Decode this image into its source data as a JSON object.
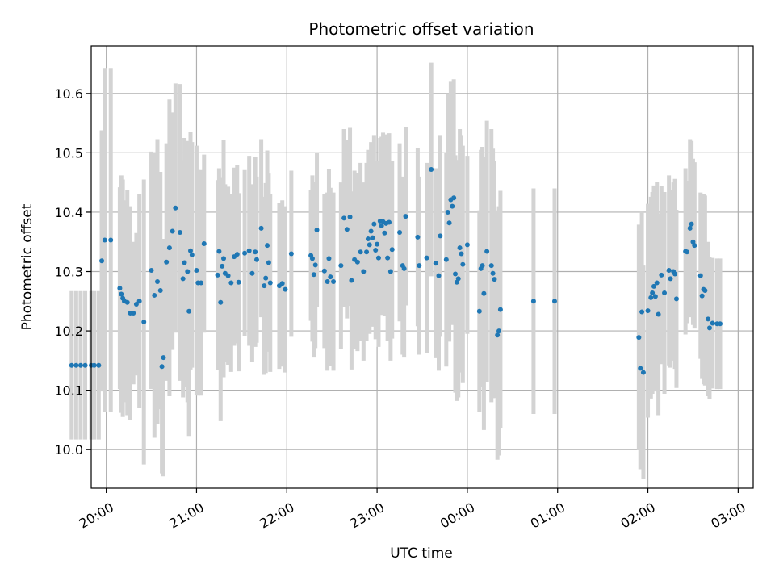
{
  "chart_data": {
    "type": "scatter",
    "title": "Photometric offset variation",
    "xlabel": "UTC time",
    "ylabel": "Photometric offset",
    "grid": true,
    "xlim": [
      "19:50",
      "27:10"
    ],
    "ylim": [
      9.935,
      10.68
    ],
    "x_unit": "UTC time of night (hours past midnight of the evening date; values above 24:00 fall after midnight)",
    "x_ticks": [
      "20:00",
      "21:00",
      "22:00",
      "23:00",
      "00:00",
      "01:00",
      "02:00",
      "03:00"
    ],
    "x_tick_positions": [
      "20:00",
      "21:00",
      "22:00",
      "23:00",
      "24:00",
      "25:00",
      "26:00",
      "27:00"
    ],
    "y_ticks": [
      10.0,
      10.1,
      10.2,
      10.3,
      10.4,
      10.5,
      10.6
    ],
    "point_color": "#1f77b4",
    "errorbar_color": "#d3d3d3",
    "points": [
      {
        "t": "19:37",
        "y": 10.142,
        "err": 0.125
      },
      {
        "t": "19:40",
        "y": 10.142,
        "err": 0.125
      },
      {
        "t": "19:43",
        "y": 10.142,
        "err": 0.125
      },
      {
        "t": "19:46",
        "y": 10.142,
        "err": 0.125
      },
      {
        "t": "19:50",
        "y": 10.142,
        "err": 0.125
      },
      {
        "t": "19:52",
        "y": 10.142,
        "err": 0.125
      },
      {
        "t": "19:55",
        "y": 10.142,
        "err": 0.125
      },
      {
        "t": "19:57",
        "y": 10.318,
        "err": 0.22
      },
      {
        "t": "19:59",
        "y": 10.353,
        "err": 0.29
      },
      {
        "t": "20:03",
        "y": 10.353,
        "err": 0.29
      },
      {
        "t": "20:09",
        "y": 10.272,
        "err": 0.17
      },
      {
        "t": "20:10",
        "y": 10.262,
        "err": 0.2
      },
      {
        "t": "20:11",
        "y": 10.255,
        "err": 0.2
      },
      {
        "t": "20:12",
        "y": 10.25,
        "err": 0.17
      },
      {
        "t": "20:14",
        "y": 10.248,
        "err": 0.19
      },
      {
        "t": "20:16",
        "y": 10.23,
        "err": 0.18
      },
      {
        "t": "20:18",
        "y": 10.23,
        "err": 0.12
      },
      {
        "t": "20:20",
        "y": 10.245,
        "err": 0.12
      },
      {
        "t": "20:22",
        "y": 10.25,
        "err": 0.18
      },
      {
        "t": "20:25",
        "y": 10.215,
        "err": 0.24
      },
      {
        "t": "20:30",
        "y": 10.302,
        "err": 0.2
      },
      {
        "t": "20:32",
        "y": 10.26,
        "err": 0.24
      },
      {
        "t": "20:34",
        "y": 10.283,
        "err": 0.24
      },
      {
        "t": "20:36",
        "y": 10.268,
        "err": 0.2
      },
      {
        "t": "20:37",
        "y": 10.14,
        "err": 0.18
      },
      {
        "t": "20:38",
        "y": 10.155,
        "err": 0.2
      },
      {
        "t": "20:40",
        "y": 10.316,
        "err": 0.2
      },
      {
        "t": "20:42",
        "y": 10.34,
        "err": 0.25
      },
      {
        "t": "20:44",
        "y": 10.368,
        "err": 0.2
      },
      {
        "t": "20:46",
        "y": 10.407,
        "err": 0.21
      },
      {
        "t": "20:49",
        "y": 10.366,
        "err": 0.25
      },
      {
        "t": "20:51",
        "y": 10.288,
        "err": 0.2
      },
      {
        "t": "20:52",
        "y": 10.315,
        "err": 0.21
      },
      {
        "t": "20:54",
        "y": 10.3,
        "err": 0.22
      },
      {
        "t": "20:55",
        "y": 10.233,
        "err": 0.21
      },
      {
        "t": "20:56",
        "y": 10.335,
        "err": 0.2
      },
      {
        "t": "20:57",
        "y": 10.328,
        "err": 0.19
      },
      {
        "t": "21:00",
        "y": 10.302,
        "err": 0.21
      },
      {
        "t": "21:01",
        "y": 10.281,
        "err": 0.19
      },
      {
        "t": "21:03",
        "y": 10.281,
        "err": 0.19
      },
      {
        "t": "21:05",
        "y": 10.347,
        "err": 0.15
      },
      {
        "t": "21:14",
        "y": 10.294,
        "err": 0.16
      },
      {
        "t": "21:15",
        "y": 10.334,
        "err": 0.14
      },
      {
        "t": "21:16",
        "y": 10.248,
        "err": 0.2
      },
      {
        "t": "21:17",
        "y": 10.309,
        "err": 0.15
      },
      {
        "t": "21:18",
        "y": 10.322,
        "err": 0.2
      },
      {
        "t": "21:19",
        "y": 10.297,
        "err": 0.15
      },
      {
        "t": "21:21",
        "y": 10.293,
        "err": 0.15
      },
      {
        "t": "21:23",
        "y": 10.281,
        "err": 0.15
      },
      {
        "t": "21:25",
        "y": 10.325,
        "err": 0.15
      },
      {
        "t": "21:27",
        "y": 10.329,
        "err": 0.15
      },
      {
        "t": "21:28",
        "y": 10.282,
        "err": 0.15
      },
      {
        "t": "21:32",
        "y": 10.331,
        "err": 0.14
      },
      {
        "t": "21:35",
        "y": 10.335,
        "err": 0.16
      },
      {
        "t": "21:37",
        "y": 10.297,
        "err": 0.15
      },
      {
        "t": "21:39",
        "y": 10.333,
        "err": 0.16
      },
      {
        "t": "21:40",
        "y": 10.32,
        "err": 0.14
      },
      {
        "t": "21:43",
        "y": 10.373,
        "err": 0.15
      },
      {
        "t": "21:45",
        "y": 10.276,
        "err": 0.15
      },
      {
        "t": "21:46",
        "y": 10.289,
        "err": 0.16
      },
      {
        "t": "21:47",
        "y": 10.344,
        "err": 0.16
      },
      {
        "t": "21:48",
        "y": 10.315,
        "err": 0.15
      },
      {
        "t": "21:49",
        "y": 10.281,
        "err": 0.15
      },
      {
        "t": "21:55",
        "y": 10.276,
        "err": 0.14
      },
      {
        "t": "21:57",
        "y": 10.28,
        "err": 0.14
      },
      {
        "t": "21:59",
        "y": 10.27,
        "err": 0.14
      },
      {
        "t": "22:03",
        "y": 10.33,
        "err": 0.14
      },
      {
        "t": "22:16",
        "y": 10.327,
        "err": 0.11
      },
      {
        "t": "22:17",
        "y": 10.322,
        "err": 0.14
      },
      {
        "t": "22:18",
        "y": 10.295,
        "err": 0.14
      },
      {
        "t": "22:19",
        "y": 10.311,
        "err": 0.14
      },
      {
        "t": "22:20",
        "y": 10.37,
        "err": 0.13
      },
      {
        "t": "22:25",
        "y": 10.301,
        "err": 0.13
      },
      {
        "t": "22:27",
        "y": 10.283,
        "err": 0.15
      },
      {
        "t": "22:28",
        "y": 10.322,
        "err": 0.15
      },
      {
        "t": "22:29",
        "y": 10.291,
        "err": 0.15
      },
      {
        "t": "22:31",
        "y": 10.283,
        "err": 0.15
      },
      {
        "t": "22:36",
        "y": 10.31,
        "err": 0.14
      },
      {
        "t": "22:38",
        "y": 10.39,
        "err": 0.15
      },
      {
        "t": "22:40",
        "y": 10.371,
        "err": 0.15
      },
      {
        "t": "22:42",
        "y": 10.392,
        "err": 0.15
      },
      {
        "t": "22:43",
        "y": 10.285,
        "err": 0.15
      },
      {
        "t": "22:45",
        "y": 10.32,
        "err": 0.15
      },
      {
        "t": "22:47",
        "y": 10.316,
        "err": 0.15
      },
      {
        "t": "22:49",
        "y": 10.333,
        "err": 0.15
      },
      {
        "t": "22:51",
        "y": 10.3,
        "err": 0.15
      },
      {
        "t": "22:53",
        "y": 10.333,
        "err": 0.15
      },
      {
        "t": "22:54",
        "y": 10.355,
        "err": 0.15
      },
      {
        "t": "22:55",
        "y": 10.345,
        "err": 0.15
      },
      {
        "t": "22:56",
        "y": 10.368,
        "err": 0.15
      },
      {
        "t": "22:57",
        "y": 10.357,
        "err": 0.15
      },
      {
        "t": "22:58",
        "y": 10.38,
        "err": 0.15
      },
      {
        "t": "22:59",
        "y": 10.336,
        "err": 0.15
      },
      {
        "t": "23:00",
        "y": 10.346,
        "err": 0.14
      },
      {
        "t": "23:01",
        "y": 10.323,
        "err": 0.15
      },
      {
        "t": "23:02",
        "y": 10.385,
        "err": 0.14
      },
      {
        "t": "23:03",
        "y": 10.377,
        "err": 0.15
      },
      {
        "t": "23:04",
        "y": 10.384,
        "err": 0.15
      },
      {
        "t": "23:05",
        "y": 10.365,
        "err": 0.14
      },
      {
        "t": "23:06",
        "y": 10.381,
        "err": 0.15
      },
      {
        "t": "23:07",
        "y": 10.323,
        "err": 0.14
      },
      {
        "t": "23:08",
        "y": 10.383,
        "err": 0.15
      },
      {
        "t": "23:09",
        "y": 10.3,
        "err": 0.15
      },
      {
        "t": "23:10",
        "y": 10.337,
        "err": 0.15
      },
      {
        "t": "23:15",
        "y": 10.366,
        "err": 0.15
      },
      {
        "t": "23:17",
        "y": 10.31,
        "err": 0.15
      },
      {
        "t": "23:18",
        "y": 10.305,
        "err": 0.15
      },
      {
        "t": "23:19",
        "y": 10.393,
        "err": 0.15
      },
      {
        "t": "23:27",
        "y": 10.358,
        "err": 0.15
      },
      {
        "t": "23:28",
        "y": 10.31,
        "err": 0.15
      },
      {
        "t": "23:33",
        "y": 10.323,
        "err": 0.16
      },
      {
        "t": "23:36",
        "y": 10.472,
        "err": 0.18
      },
      {
        "t": "23:39",
        "y": 10.314,
        "err": 0.16
      },
      {
        "t": "23:41",
        "y": 10.293,
        "err": 0.16
      },
      {
        "t": "23:42",
        "y": 10.36,
        "err": 0.17
      },
      {
        "t": "23:46",
        "y": 10.32,
        "err": 0.18
      },
      {
        "t": "23:47",
        "y": 10.4,
        "err": 0.2
      },
      {
        "t": "23:48",
        "y": 10.382,
        "err": 0.2
      },
      {
        "t": "23:49",
        "y": 10.421,
        "err": 0.2
      },
      {
        "t": "23:50",
        "y": 10.41,
        "err": 0.2
      },
      {
        "t": "23:51",
        "y": 10.424,
        "err": 0.2
      },
      {
        "t": "23:52",
        "y": 10.296,
        "err": 0.2
      },
      {
        "t": "23:53",
        "y": 10.282,
        "err": 0.2
      },
      {
        "t": "23:54",
        "y": 10.288,
        "err": 0.2
      },
      {
        "t": "23:55",
        "y": 10.34,
        "err": 0.2
      },
      {
        "t": "23:56",
        "y": 10.33,
        "err": 0.2
      },
      {
        "t": "23:57",
        "y": 10.312,
        "err": 0.2
      },
      {
        "t": "24:00",
        "y": 10.345,
        "err": 0.15
      },
      {
        "t": "24:08",
        "y": 10.233,
        "err": 0.17
      },
      {
        "t": "24:09",
        "y": 10.305,
        "err": 0.2
      },
      {
        "t": "24:10",
        "y": 10.31,
        "err": 0.2
      },
      {
        "t": "24:11",
        "y": 10.263,
        "err": 0.23
      },
      {
        "t": "24:13",
        "y": 10.334,
        "err": 0.22
      },
      {
        "t": "24:16",
        "y": 10.31,
        "err": 0.23
      },
      {
        "t": "24:17",
        "y": 10.297,
        "err": 0.21
      },
      {
        "t": "24:18",
        "y": 10.287,
        "err": 0.2
      },
      {
        "t": "24:20",
        "y": 10.193,
        "err": 0.21
      },
      {
        "t": "24:21",
        "y": 10.2,
        "err": 0.21
      },
      {
        "t": "24:22",
        "y": 10.236,
        "err": 0.2
      },
      {
        "t": "24:44",
        "y": 10.25,
        "err": 0.19
      },
      {
        "t": "24:58",
        "y": 10.25,
        "err": 0.19
      },
      {
        "t": "25:54",
        "y": 10.189,
        "err": 0.19
      },
      {
        "t": "25:55",
        "y": 10.137,
        "err": 0.17
      },
      {
        "t": "25:56",
        "y": 10.232,
        "err": 0.17
      },
      {
        "t": "25:57",
        "y": 10.13,
        "err": 0.18
      },
      {
        "t": "26:00",
        "y": 10.234,
        "err": 0.18
      },
      {
        "t": "26:02",
        "y": 10.256,
        "err": 0.17
      },
      {
        "t": "26:03",
        "y": 10.264,
        "err": 0.17
      },
      {
        "t": "26:04",
        "y": 10.275,
        "err": 0.17
      },
      {
        "t": "26:05",
        "y": 10.258,
        "err": 0.16
      },
      {
        "t": "26:06",
        "y": 10.281,
        "err": 0.17
      },
      {
        "t": "26:07",
        "y": 10.228,
        "err": 0.17
      },
      {
        "t": "26:09",
        "y": 10.294,
        "err": 0.15
      },
      {
        "t": "26:11",
        "y": 10.264,
        "err": 0.17
      },
      {
        "t": "26:14",
        "y": 10.302,
        "err": 0.16
      },
      {
        "t": "26:15",
        "y": 10.288,
        "err": 0.15
      },
      {
        "t": "26:17",
        "y": 10.3,
        "err": 0.15
      },
      {
        "t": "26:18",
        "y": 10.296,
        "err": 0.16
      },
      {
        "t": "26:19",
        "y": 10.254,
        "err": 0.15
      },
      {
        "t": "26:25",
        "y": 10.334,
        "err": 0.14
      },
      {
        "t": "26:26",
        "y": 10.333,
        "err": 0.12
      },
      {
        "t": "26:28",
        "y": 10.373,
        "err": 0.15
      },
      {
        "t": "26:29",
        "y": 10.38,
        "err": 0.14
      },
      {
        "t": "26:30",
        "y": 10.35,
        "err": 0.14
      },
      {
        "t": "26:31",
        "y": 10.344,
        "err": 0.14
      },
      {
        "t": "26:35",
        "y": 10.293,
        "err": 0.14
      },
      {
        "t": "26:36",
        "y": 10.259,
        "err": 0.14
      },
      {
        "t": "26:37",
        "y": 10.27,
        "err": 0.16
      },
      {
        "t": "26:38",
        "y": 10.268,
        "err": 0.16
      },
      {
        "t": "26:40",
        "y": 10.22,
        "err": 0.13
      },
      {
        "t": "26:41",
        "y": 10.205,
        "err": 0.12
      },
      {
        "t": "26:43",
        "y": 10.213,
        "err": 0.11
      },
      {
        "t": "26:46",
        "y": 10.212,
        "err": 0.11
      },
      {
        "t": "26:48",
        "y": 10.212,
        "err": 0.11
      }
    ]
  }
}
